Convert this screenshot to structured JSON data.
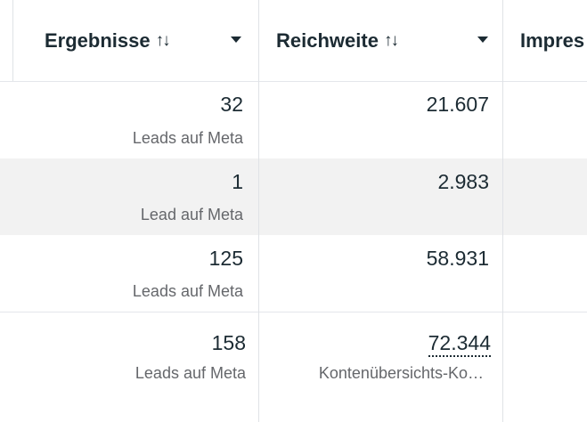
{
  "columns": [
    {
      "label": "Ergebnisse",
      "sort_icon": "sort-icon",
      "menu_icon": "dropdown-icon"
    },
    {
      "label": "Reichweite",
      "sort_icon": "sort-icon",
      "menu_icon": "dropdown-icon"
    },
    {
      "label": "Impres"
    }
  ],
  "rows": [
    {
      "ergebnisse": "32",
      "ergebnisse_type": "Leads auf Meta",
      "reichweite": "21.607"
    },
    {
      "ergebnisse": "1",
      "ergebnisse_type": "Lead auf Meta",
      "reichweite": "2.983"
    },
    {
      "ergebnisse": "125",
      "ergebnisse_type": "Leads auf Meta",
      "reichweite": "58.931"
    }
  ],
  "summary": {
    "ergebnisse": "158",
    "ergebnisse_type": "Leads auf Meta",
    "reichweite": "72.344",
    "reichweite_type": "Kontenübersichts-Ko…"
  },
  "glyphs": {
    "sort": "↑↓"
  }
}
